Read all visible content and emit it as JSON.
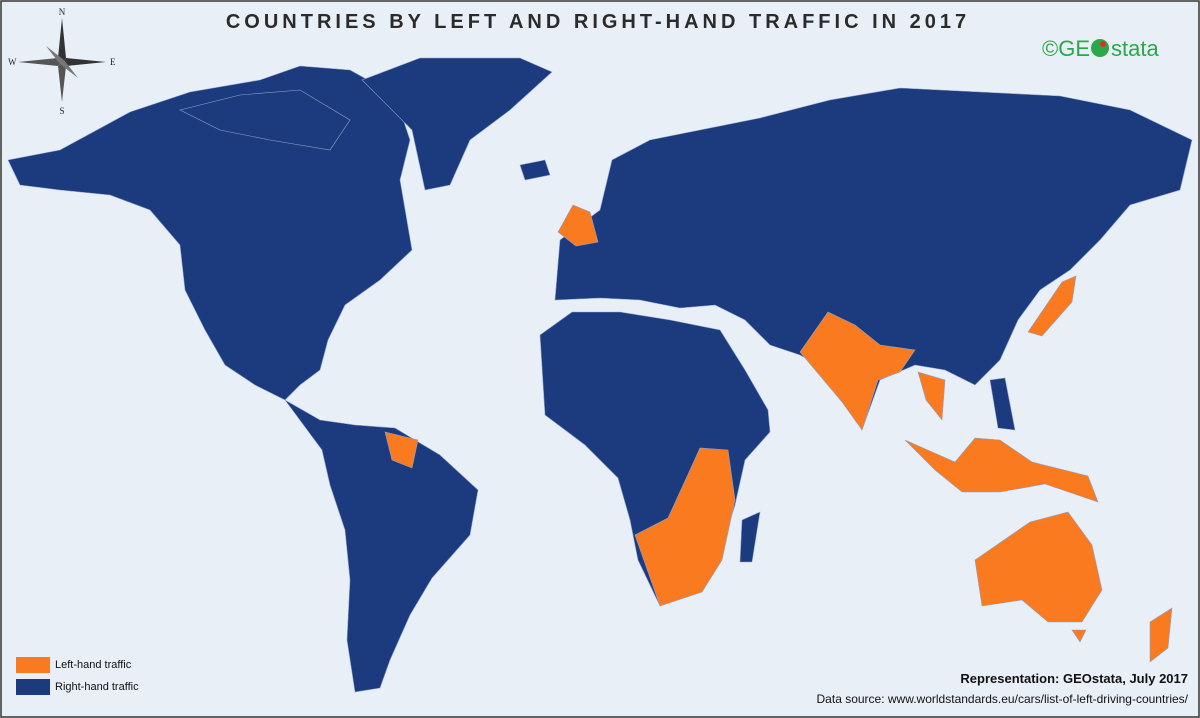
{
  "title": "COUNTRIES BY LEFT AND RIGHT-HAND TRAFFIC IN 2017",
  "logo": {
    "prefix": "©GE",
    "suffix": "stata"
  },
  "compass": {
    "n": "N",
    "e": "E",
    "s": "S",
    "w": "W"
  },
  "legend": [
    {
      "label": "Left-hand traffic",
      "color": "#f97a1f"
    },
    {
      "label": "Right-hand traffic",
      "color": "#1c3a7e"
    }
  ],
  "credit": "Representation: GEOstata, July 2017",
  "source": "Data source: www.worldstandards.eu/cars/list-of-left-driving-countries/"
}
